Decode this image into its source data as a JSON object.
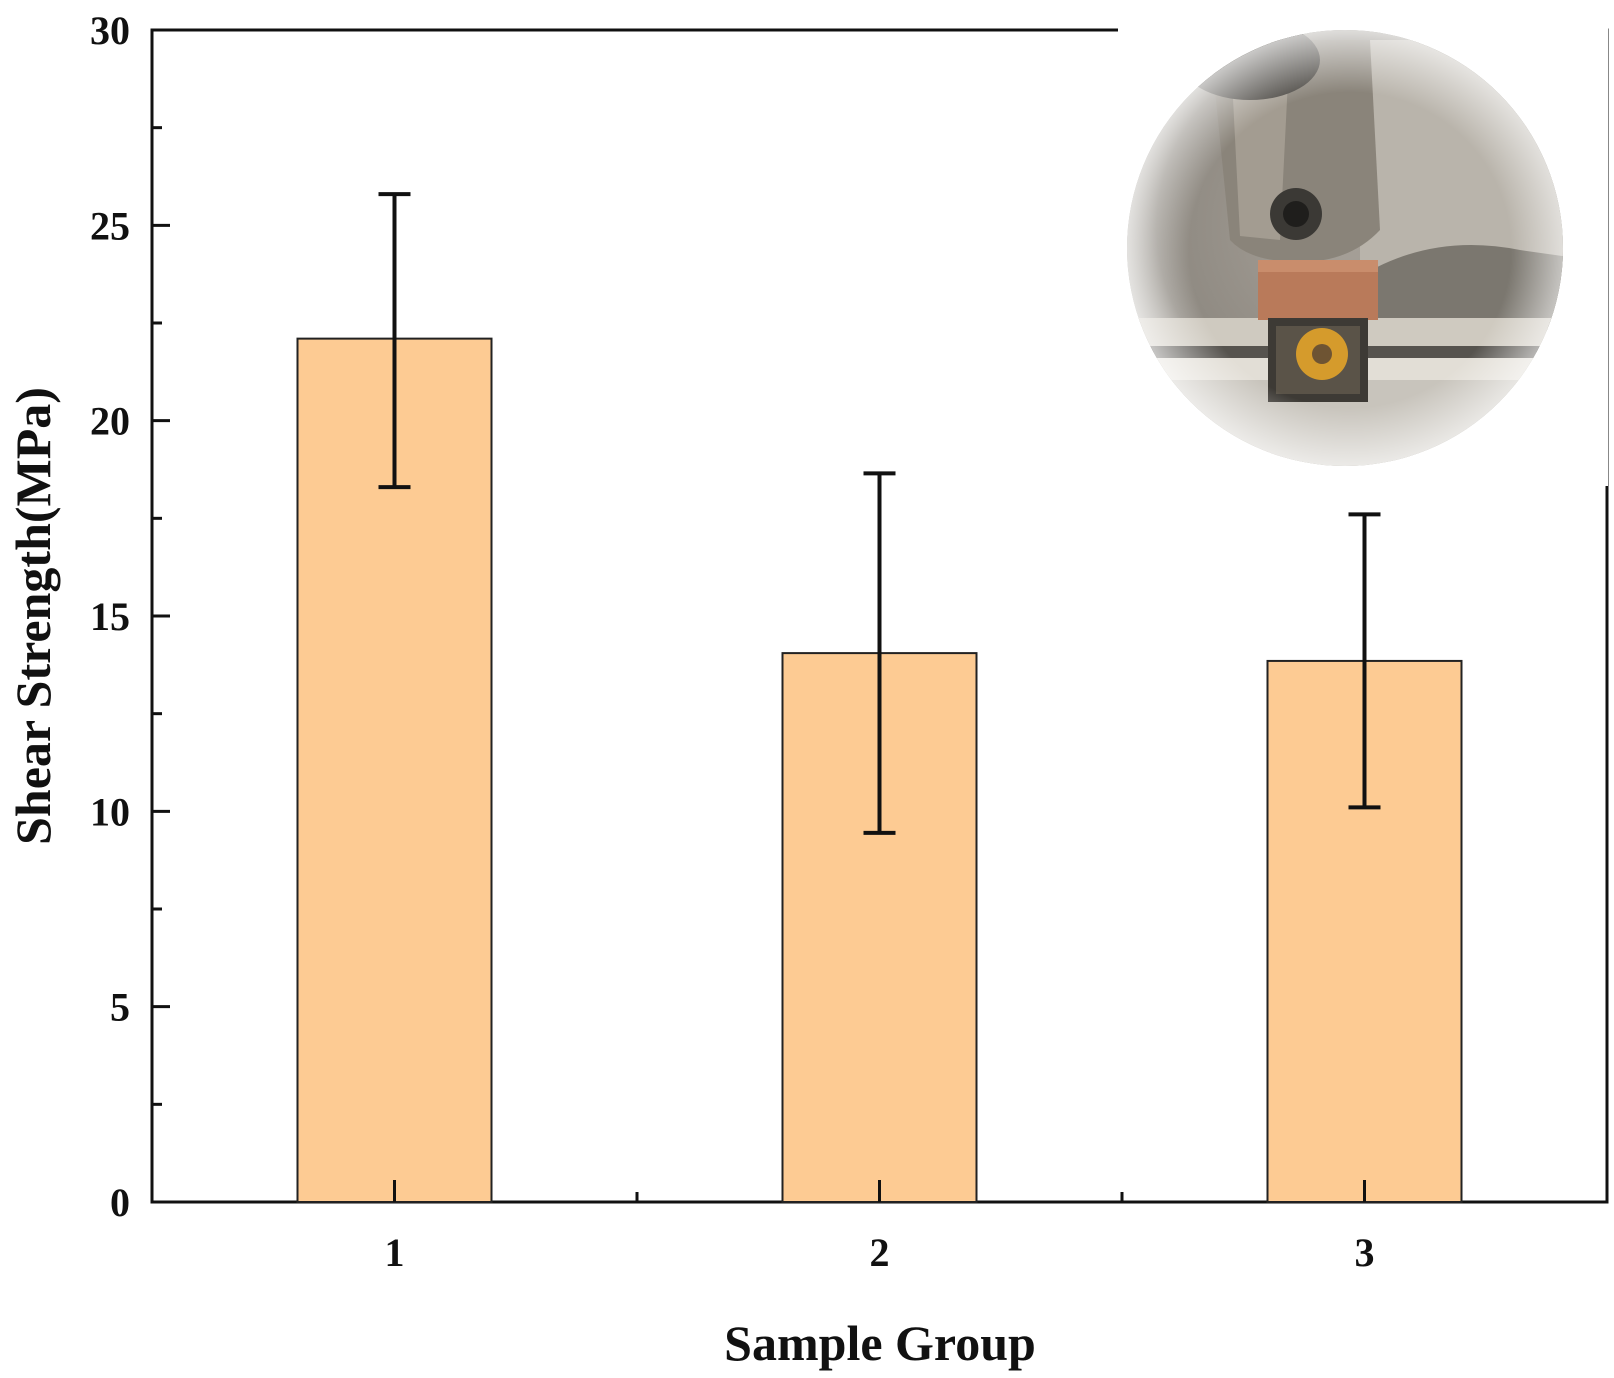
{
  "chart_data": {
    "type": "bar",
    "categories": [
      "1",
      "2",
      "3"
    ],
    "values": [
      22.1,
      14.05,
      13.85
    ],
    "error_low": [
      18.3,
      9.45,
      10.1
    ],
    "error_high": [
      25.8,
      18.65,
      17.6
    ],
    "title": "",
    "xlabel": "Sample Group",
    "ylabel": "Shear Strength(MPa)",
    "ylim": [
      0,
      30
    ],
    "yticks": [
      "0",
      "5",
      "10",
      "15",
      "20",
      "25",
      "30"
    ],
    "grid": false,
    "legend": "none",
    "inset": "circular photograph of the shear test fixture, top-right",
    "colors": {
      "bar": "#fdcb93",
      "bar_edge": "#222222",
      "axis": "#111111"
    }
  }
}
